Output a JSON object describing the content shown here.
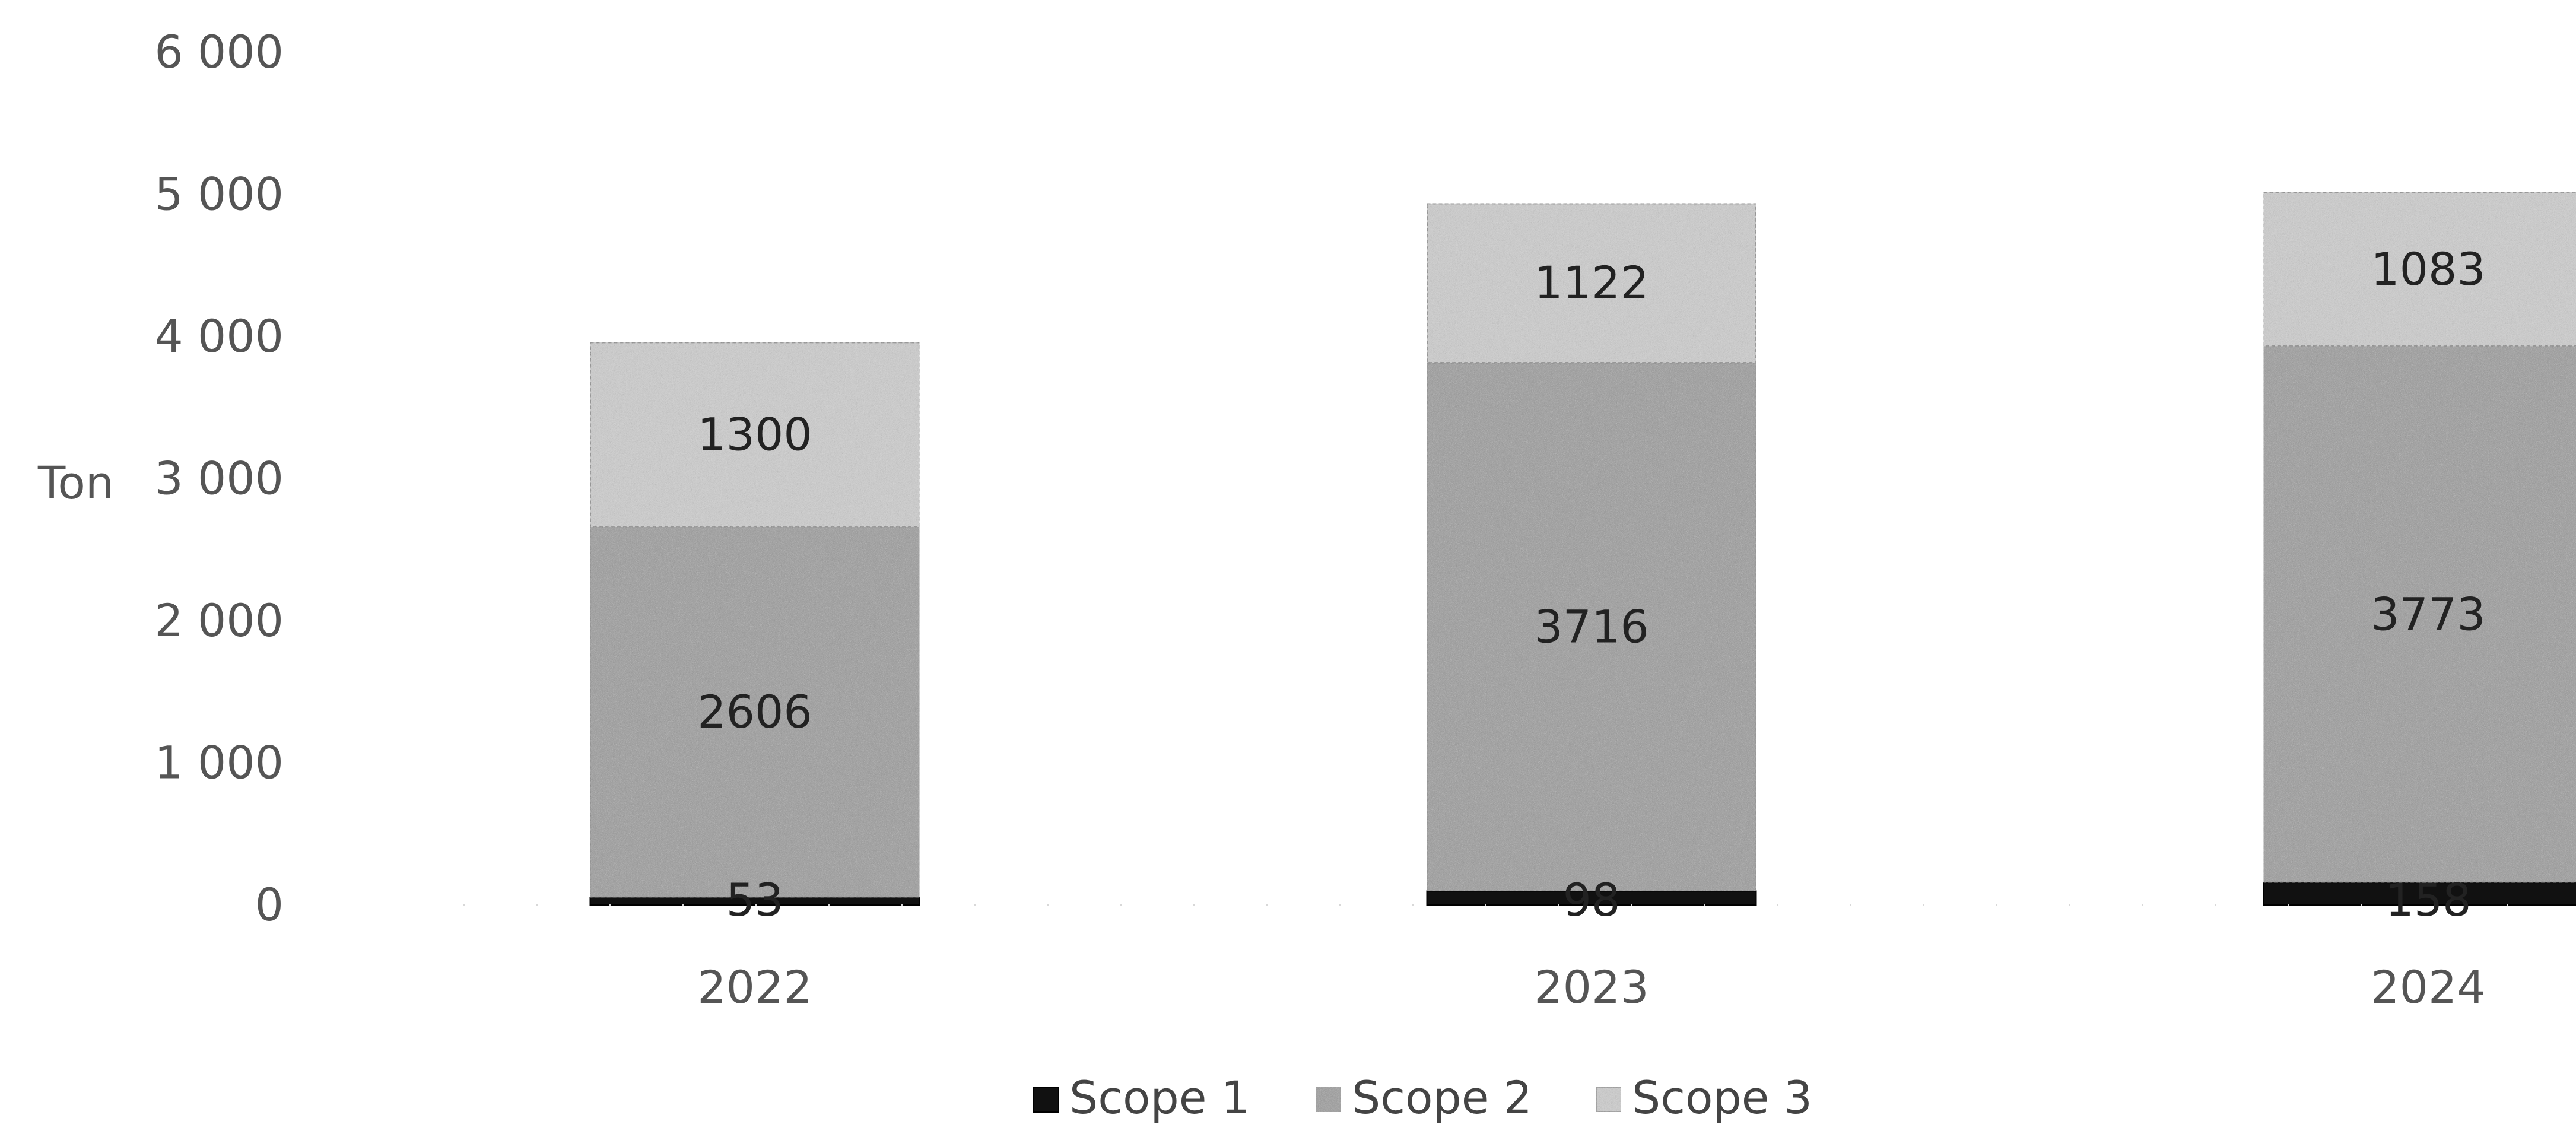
{
  "chart_data": {
    "type": "bar",
    "stacked": true,
    "categories": [
      "2022",
      "2023",
      "2024"
    ],
    "series": [
      {
        "name": "Scope 1",
        "values": [
          53,
          98,
          158
        ],
        "color": "#111111",
        "pattern": "solid-dark"
      },
      {
        "name": "Scope 2",
        "values": [
          2606,
          3716,
          3773
        ],
        "color": "#9a9a9a",
        "pattern": "dense-noise"
      },
      {
        "name": "Scope 3",
        "values": [
          1300,
          1122,
          1083
        ],
        "color": "#cfcfcf",
        "pattern": "light-noise"
      }
    ],
    "data_labels": {
      "Scope 1": [
        "53",
        "98",
        "158"
      ],
      "Scope 2": [
        "2606",
        "3716",
        "3773"
      ],
      "Scope 3": [
        "1300",
        "1122",
        "1083"
      ]
    },
    "ylabel": "Ton",
    "ylim": [
      0,
      6000
    ],
    "yticks": [
      0,
      1000,
      2000,
      3000,
      4000,
      5000,
      6000
    ],
    "ytick_labels": [
      "0",
      "1 000",
      "2 000",
      "3 000",
      "4 000",
      "5 000",
      "6 000"
    ],
    "grid": false,
    "legend_position": "bottom"
  }
}
